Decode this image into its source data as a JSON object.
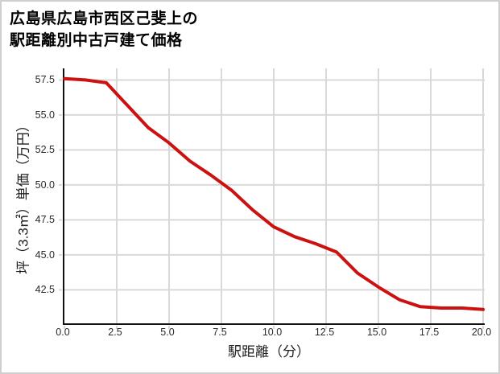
{
  "chart": {
    "title_line1": "広島県広島市西区己斐上の",
    "title_line2": "駅距離別中古戸建て価格",
    "xlabel": "駅距離（分）",
    "ylabel": "坪（3.3㎡）単価（万円）"
  },
  "chart_data": {
    "type": "line",
    "title": "広島県広島市西区己斐上の駅距離別中古戸建て価格",
    "xlabel": "駅距離（分）",
    "ylabel": "坪（3.3㎡）単価（万円）",
    "x": [
      0,
      1,
      2,
      3,
      4,
      5,
      6,
      7,
      8,
      9,
      10,
      11,
      12,
      13,
      14,
      15,
      16,
      17,
      18,
      19,
      20
    ],
    "values": [
      57.6,
      57.5,
      57.3,
      55.7,
      54.1,
      53.0,
      51.7,
      50.7,
      49.6,
      48.2,
      47.0,
      46.3,
      45.8,
      45.2,
      43.7,
      42.7,
      41.8,
      41.3,
      41.2,
      41.2,
      41.1
    ],
    "xtick_values": [
      0,
      2.5,
      5,
      7.5,
      10,
      12.5,
      15,
      17.5,
      20
    ],
    "xtick_labels": [
      "0.0",
      "2.5",
      "5.0",
      "7.5",
      "10.0",
      "12.5",
      "15.0",
      "17.5",
      "20.0"
    ],
    "ytick_values": [
      57.5,
      55.0,
      52.5,
      50.0,
      47.5,
      45.0,
      42.5
    ],
    "ytick_labels": [
      "57.5",
      "55.0",
      "52.5",
      "50.0",
      "47.5",
      "45.0",
      "42.5"
    ],
    "xlim": [
      0,
      20
    ],
    "ylim": [
      40.11,
      58.33
    ],
    "grid": true,
    "legend": "none",
    "line_color": "#cc1111",
    "grid_color": "#d9d9d9",
    "axis_color": "#111111"
  }
}
